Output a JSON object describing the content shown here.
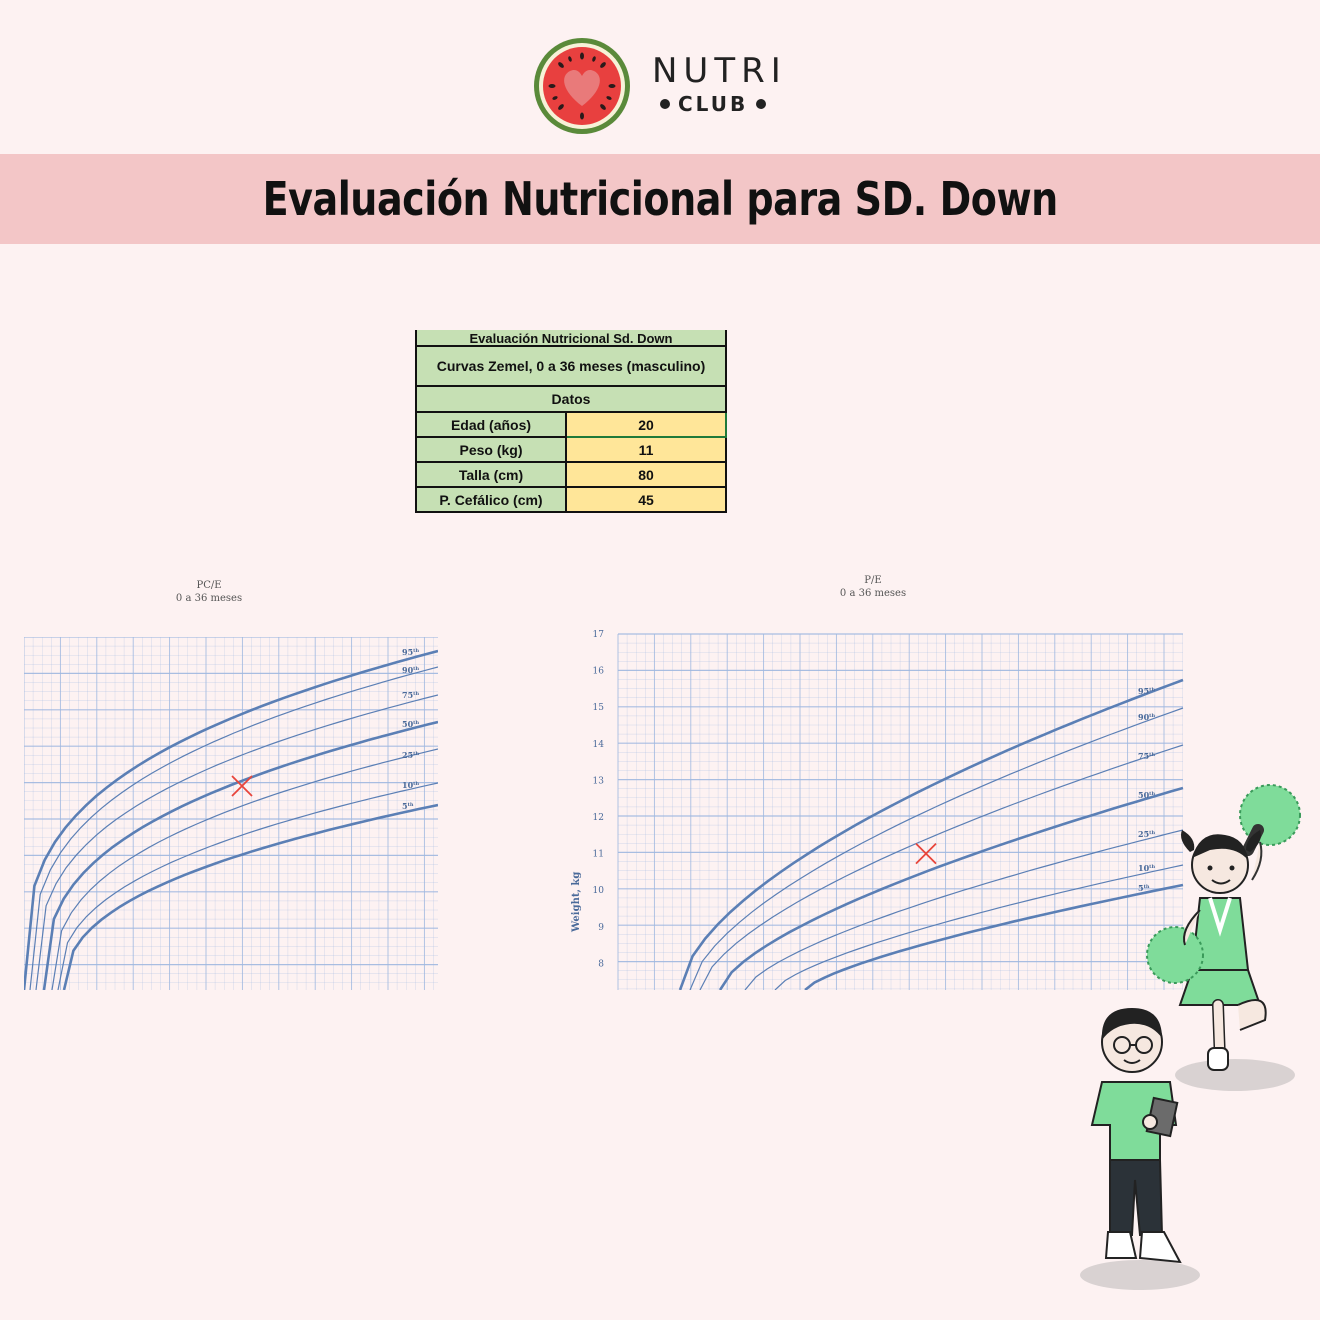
{
  "brand": {
    "name_top": "NUTRI",
    "name_bottom": "CLUB"
  },
  "banner": {
    "title": "Evaluación Nutricional para SD. Down"
  },
  "table": {
    "title": "Evaluación Nutricional Sd. Down",
    "subtitle": "Curvas Zemel, 0 a 36 meses (masculino)",
    "section": "Datos",
    "rows": [
      {
        "label": "Edad (años)",
        "value": "20"
      },
      {
        "label": "Peso (kg)",
        "value": "11"
      },
      {
        "label": "Talla (cm)",
        "value": "80"
      },
      {
        "label": "P. Cefálico (cm)",
        "value": "45"
      }
    ]
  },
  "colors": {
    "banner": "#f3c6c7",
    "table_header": "#c6e0b4",
    "table_value": "#ffe699",
    "curve": "#5b7fb5",
    "grid": "#9fb8e0",
    "marker": "#e8443a"
  },
  "chart_data": [
    {
      "type": "line",
      "title": "PC/E",
      "subtitle": "0 a 36 meses",
      "series_labels": [
        "95th",
        "90th",
        "75th",
        "50th",
        "25th",
        "10th",
        "5th"
      ],
      "marker": "x"
    },
    {
      "type": "line",
      "title": "P/E",
      "subtitle": "0 a 36 meses",
      "ylabel": "Weight, kg",
      "yticks": [
        "17",
        "16",
        "15",
        "14",
        "13",
        "12",
        "11",
        "10",
        "9",
        "8"
      ],
      "series_labels": [
        "95th",
        "90th",
        "75th",
        "50th",
        "25th",
        "10th",
        "5th"
      ],
      "marker": {
        "y": 11
      }
    }
  ]
}
